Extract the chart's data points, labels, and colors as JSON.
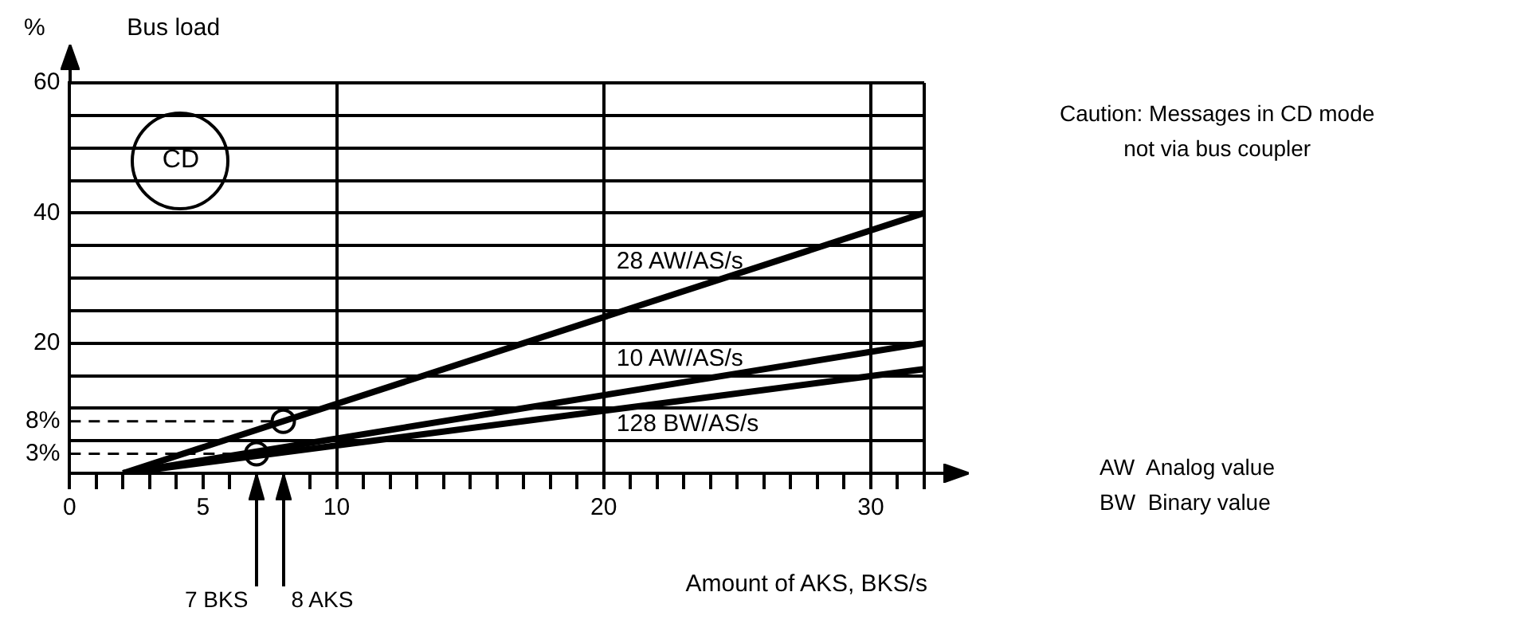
{
  "chart_data": {
    "type": "line",
    "title": "Bus load",
    "ylabel": "%",
    "xlabel": "Amount of AKS, BKS/s",
    "xlim": [
      0,
      32
    ],
    "ylim": [
      0,
      60
    ],
    "xticks": [
      0,
      {
        "value": 1,
        "label": null
      },
      {
        "value": 2,
        "label": null
      },
      {
        "value": 3,
        "label": null
      },
      {
        "value": 4,
        "label": null
      },
      5,
      {
        "value": 6,
        "label": null
      },
      {
        "value": 7,
        "label": null
      },
      {
        "value": 8,
        "label": null
      },
      {
        "value": 9,
        "label": null
      },
      10,
      {
        "value": 11,
        "label": null
      },
      {
        "value": 12,
        "label": null
      },
      {
        "value": 13,
        "label": null
      },
      {
        "value": 14,
        "label": null
      },
      {
        "value": 15,
        "label": null
      },
      {
        "value": 16,
        "label": null
      },
      {
        "value": 17,
        "label": null
      },
      {
        "value": 18,
        "label": null
      },
      {
        "value": 19,
        "label": null
      },
      20,
      {
        "value": 21,
        "label": null
      },
      {
        "value": 22,
        "label": null
      },
      {
        "value": 23,
        "label": null
      },
      {
        "value": 24,
        "label": null
      },
      {
        "value": 25,
        "label": null
      },
      {
        "value": 26,
        "label": null
      },
      {
        "value": 27,
        "label": null
      },
      {
        "value": 28,
        "label": null
      },
      {
        "value": 29,
        "label": null
      },
      30,
      {
        "value": 31,
        "label": null
      },
      {
        "value": 32,
        "label": null
      }
    ],
    "yticks": [
      {
        "value": 0,
        "label": null
      },
      {
        "value": 3,
        "label": "3%"
      },
      {
        "value": 5,
        "label": null
      },
      {
        "value": 8,
        "label": "8%"
      },
      {
        "value": 10,
        "label": null
      },
      {
        "value": 15,
        "label": null
      },
      20,
      {
        "value": 25,
        "label": null
      },
      {
        "value": 30,
        "label": null
      },
      {
        "value": 35,
        "label": null
      },
      40,
      {
        "value": 45,
        "label": null
      },
      {
        "value": 50,
        "label": null
      },
      {
        "value": 55,
        "label": null
      },
      60
    ],
    "grid": true,
    "legend": false,
    "series": [
      {
        "name": "28 AW/AS/s",
        "type": "line",
        "color": "#000000",
        "x": [
          2,
          32
        ],
        "values": [
          0,
          40
        ]
      },
      {
        "name": "10 AW/AS/s",
        "type": "line",
        "color": "#000000",
        "x": [
          2,
          32
        ],
        "values": [
          0,
          20
        ]
      },
      {
        "name": "128 BW/AS/s",
        "type": "line",
        "color": "#000000",
        "x": [
          2,
          32
        ],
        "values": [
          0,
          16
        ]
      },
      {
        "type": "line",
        "line_style": "dashed",
        "color": "#000000",
        "x": [
          0,
          8
        ],
        "values": [
          8,
          8
        ]
      },
      {
        "type": "line",
        "line_style": "dashed",
        "color": "#000000",
        "x": [
          0,
          7
        ],
        "values": [
          3,
          3
        ]
      },
      {
        "type": "scatter",
        "marker": "circle",
        "color": "#000000",
        "x": [
          7,
          8
        ],
        "values": [
          3,
          8
        ]
      }
    ],
    "annotations": [
      "CD",
      "Caution: Messages in CD mode\nnot via bus coupler",
      "7 BKS",
      "8 AKS",
      "AW  Analog value\nBW  Binary value"
    ]
  }
}
